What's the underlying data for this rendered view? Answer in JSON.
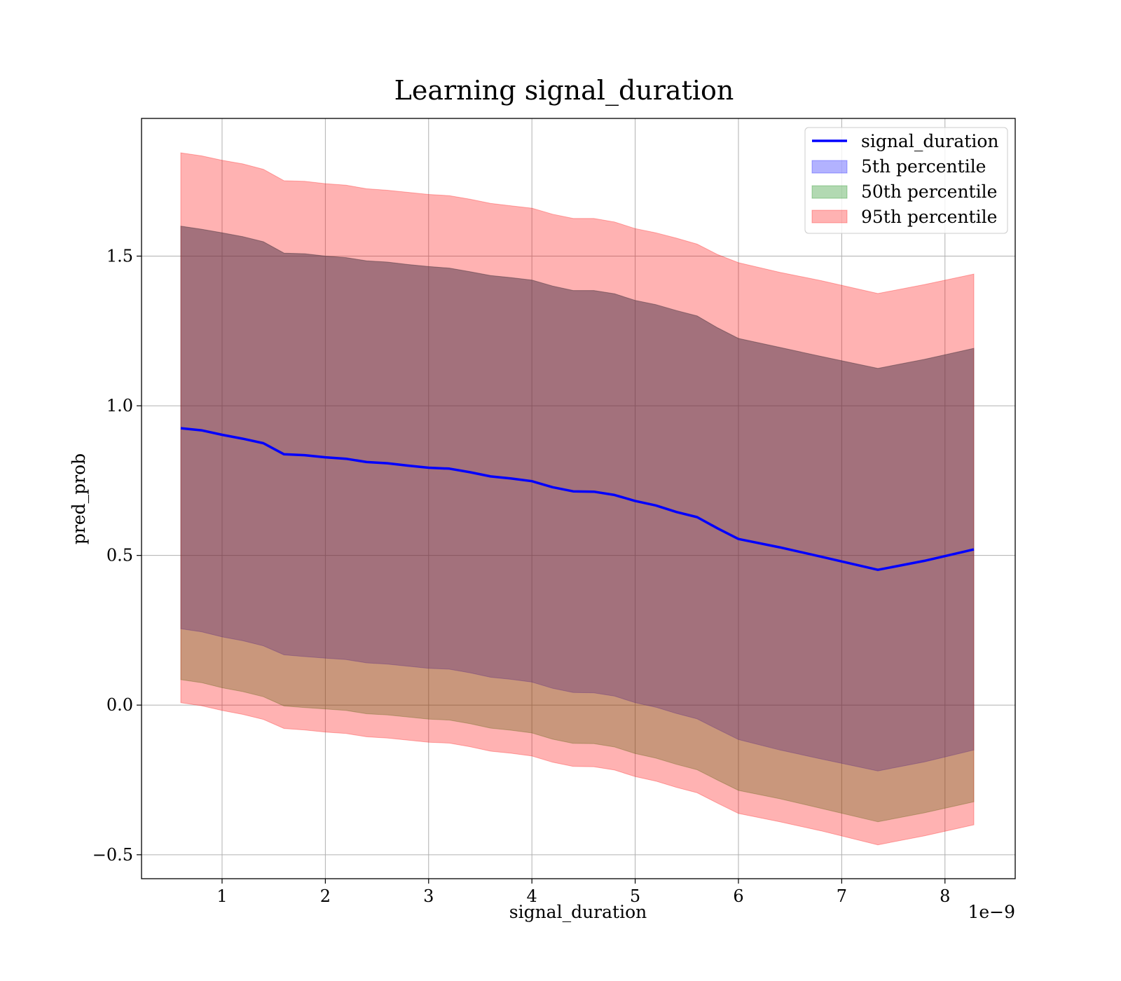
{
  "chart_data": {
    "type": "area",
    "title": "Learning signal_duration",
    "xlabel": "signal_duration",
    "ylabel": "pred_prob",
    "x_offset_label": "1e−9",
    "x_ticks": [
      1,
      2,
      3,
      4,
      5,
      6,
      7,
      8
    ],
    "x_tick_labels": [
      "1",
      "2",
      "3",
      "4",
      "5",
      "6",
      "7",
      "8"
    ],
    "y_ticks": [
      -0.5,
      0.0,
      0.5,
      1.0,
      1.5
    ],
    "y_tick_labels": [
      "−0.5",
      "0.0",
      "0.5",
      "1.0",
      "1.5"
    ],
    "xlim": [
      0.22,
      8.68
    ],
    "ylim": [
      -0.58,
      1.96
    ],
    "grid": true,
    "legend_position": "top-right",
    "x": [
      0.6,
      0.8,
      1.0,
      1.2,
      1.4,
      1.6,
      1.8,
      2.0,
      2.2,
      2.4,
      2.6,
      2.8,
      3.0,
      3.2,
      3.4,
      3.6,
      3.8,
      4.0,
      4.2,
      4.4,
      4.6,
      4.8,
      5.0,
      5.2,
      5.4,
      5.6,
      5.8,
      6.0,
      6.4,
      6.8,
      7.35,
      7.8,
      8.28
    ],
    "series": [
      {
        "name": "signal_duration",
        "kind": "line",
        "color": "#0000ff",
        "values": [
          0.925,
          0.918,
          0.903,
          0.89,
          0.875,
          0.838,
          0.835,
          0.828,
          0.823,
          0.812,
          0.808,
          0.8,
          0.793,
          0.79,
          0.778,
          0.764,
          0.757,
          0.748,
          0.728,
          0.714,
          0.713,
          0.702,
          0.682,
          0.667,
          0.645,
          0.628,
          0.59,
          0.555,
          0.527,
          0.496,
          0.452,
          0.482,
          0.52
        ]
      },
      {
        "name": "5th percentile",
        "kind": "band",
        "color": "#0000ff",
        "opacity": 0.3,
        "lower": [
          0.255,
          0.245,
          0.228,
          0.215,
          0.198,
          0.168,
          0.162,
          0.157,
          0.152,
          0.141,
          0.137,
          0.13,
          0.123,
          0.12,
          0.108,
          0.093,
          0.086,
          0.077,
          0.056,
          0.042,
          0.041,
          0.03,
          0.008,
          -0.007,
          -0.028,
          -0.046,
          -0.081,
          -0.115,
          -0.15,
          -0.18,
          -0.22,
          -0.19,
          -0.15
        ],
        "upper": [
          1.6,
          1.59,
          1.578,
          1.565,
          1.548,
          1.51,
          1.508,
          1.5,
          1.495,
          1.484,
          1.48,
          1.472,
          1.465,
          1.46,
          1.448,
          1.435,
          1.428,
          1.42,
          1.4,
          1.385,
          1.385,
          1.374,
          1.352,
          1.338,
          1.318,
          1.3,
          1.26,
          1.225,
          1.195,
          1.165,
          1.125,
          1.155,
          1.192
        ]
      },
      {
        "name": "50th percentile",
        "kind": "band",
        "color": "#008000",
        "opacity": 0.3,
        "lower": [
          0.085,
          0.075,
          0.058,
          0.045,
          0.028,
          -0.003,
          -0.008,
          -0.013,
          -0.018,
          -0.029,
          -0.033,
          -0.04,
          -0.047,
          -0.05,
          -0.062,
          -0.077,
          -0.084,
          -0.093,
          -0.114,
          -0.128,
          -0.129,
          -0.14,
          -0.162,
          -0.177,
          -0.198,
          -0.216,
          -0.251,
          -0.285,
          -0.313,
          -0.345,
          -0.39,
          -0.36,
          -0.323
        ]
      },
      {
        "name": "95th percentile",
        "kind": "band",
        "color": "#ff0000",
        "opacity": 0.3,
        "lower": [
          0.008,
          -0.002,
          -0.018,
          -0.031,
          -0.048,
          -0.078,
          -0.083,
          -0.09,
          -0.095,
          -0.106,
          -0.11,
          -0.117,
          -0.124,
          -0.127,
          -0.139,
          -0.154,
          -0.161,
          -0.17,
          -0.191,
          -0.205,
          -0.206,
          -0.217,
          -0.239,
          -0.254,
          -0.275,
          -0.293,
          -0.328,
          -0.362,
          -0.39,
          -0.42,
          -0.467,
          -0.437,
          -0.4
        ],
        "upper": [
          1.845,
          1.835,
          1.82,
          1.808,
          1.79,
          1.752,
          1.75,
          1.742,
          1.737,
          1.725,
          1.72,
          1.713,
          1.706,
          1.702,
          1.69,
          1.676,
          1.668,
          1.66,
          1.64,
          1.626,
          1.626,
          1.614,
          1.592,
          1.578,
          1.56,
          1.54,
          1.505,
          1.478,
          1.446,
          1.418,
          1.375,
          1.405,
          1.44
        ]
      }
    ]
  }
}
